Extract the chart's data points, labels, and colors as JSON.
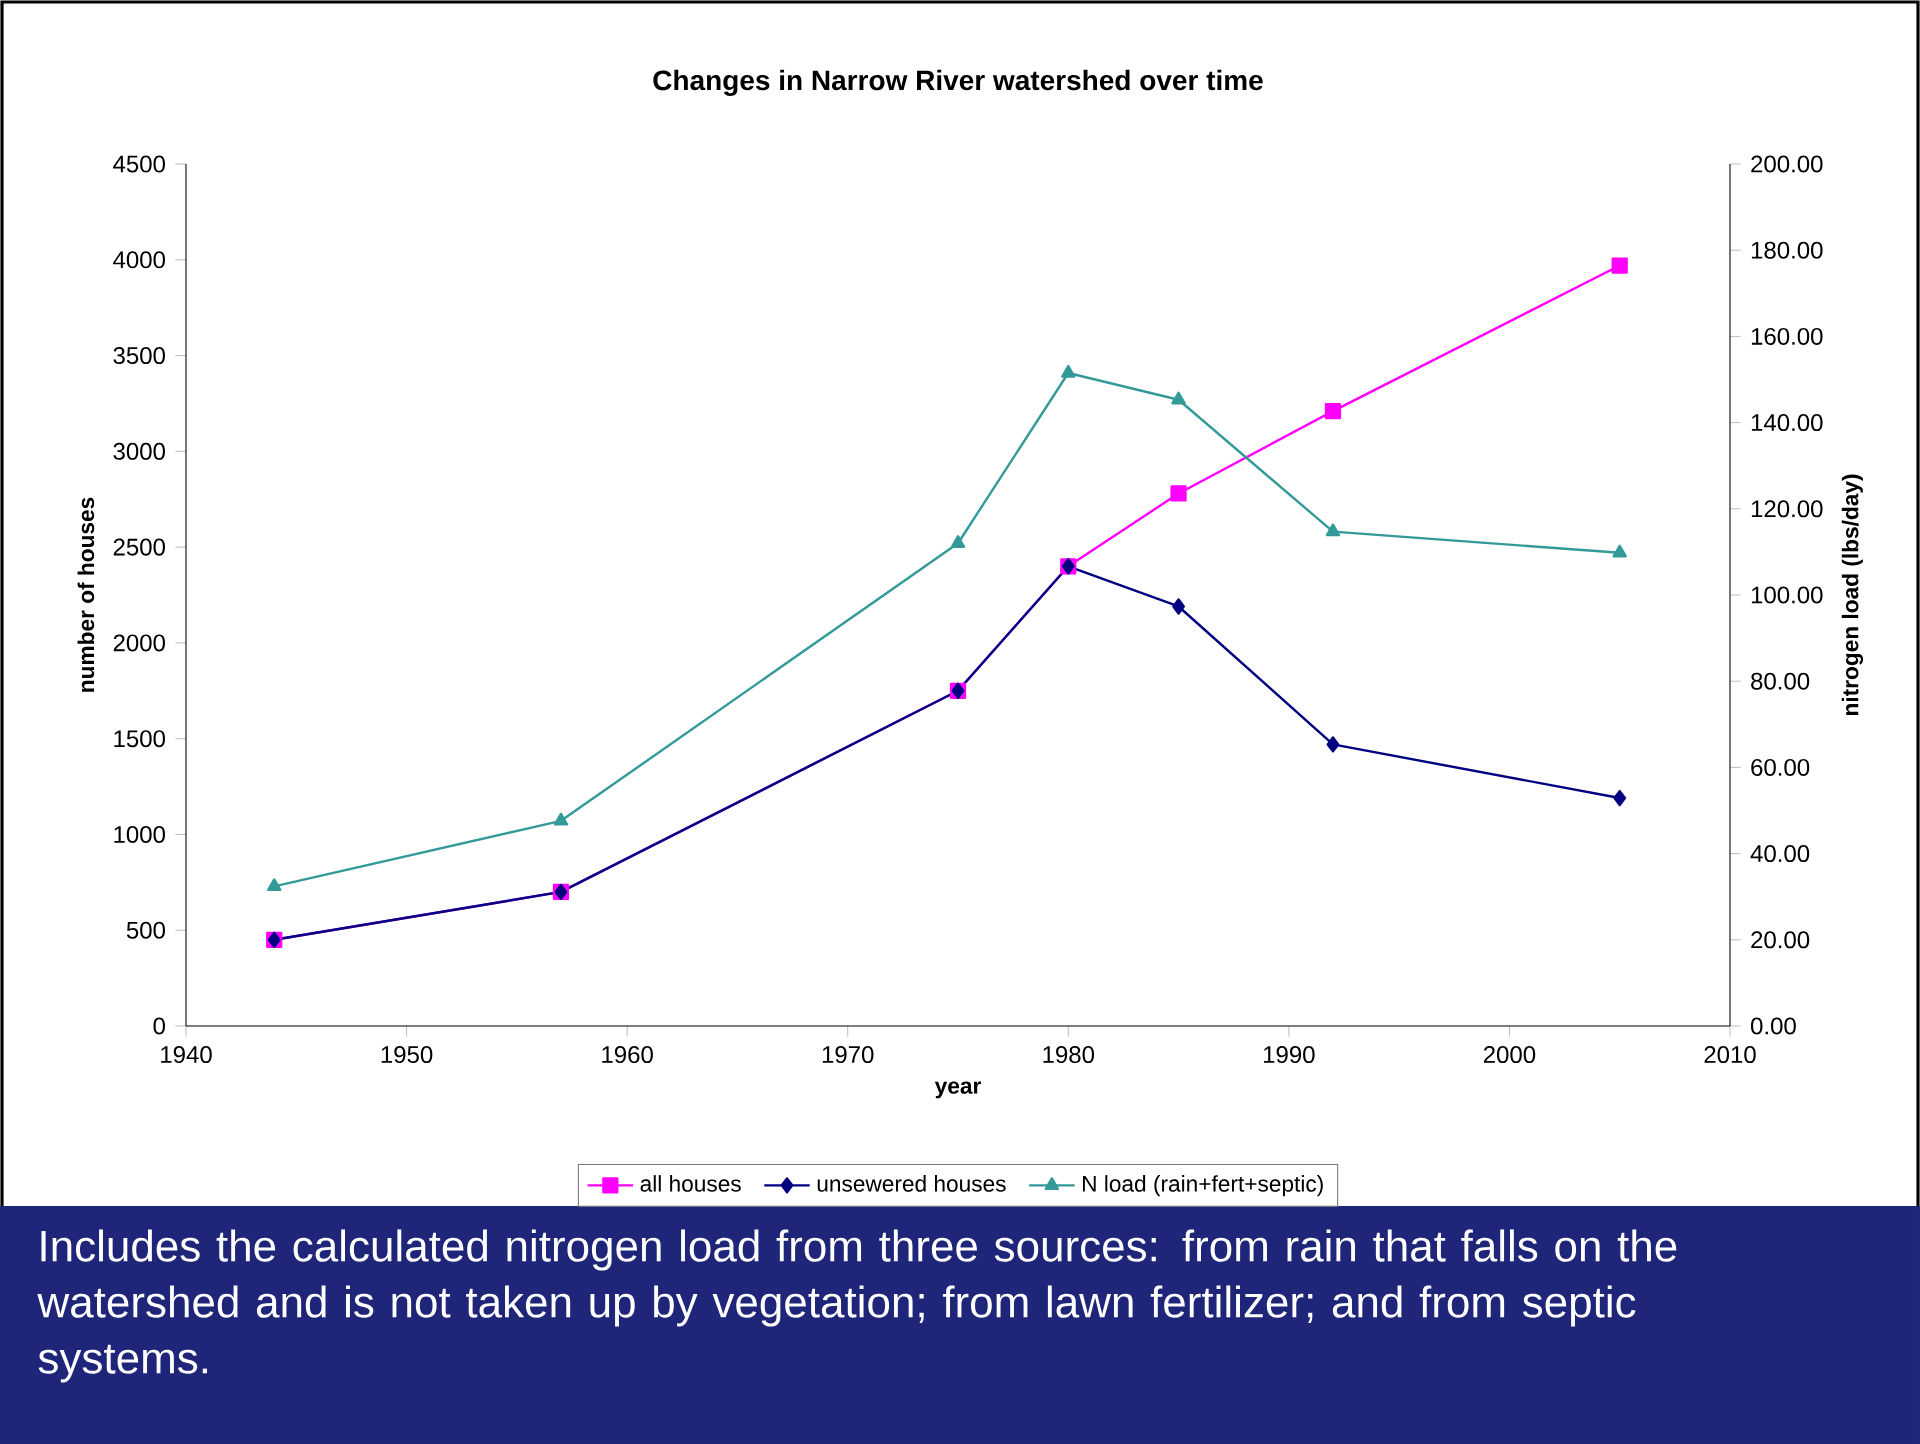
{
  "chart_data": {
    "type": "line",
    "title": "Changes in Narrow River watershed over time",
    "xlabel": "year",
    "ylabel": "number of houses",
    "y2label": "nitrogen load (lbs/day)",
    "x": [
      1944,
      1957,
      1975,
      1980,
      1985,
      1992,
      2005
    ],
    "series": [
      {
        "name": "all houses",
        "color": "#ff00ff",
        "marker": "square",
        "values": [
          450,
          700,
          1750,
          2400,
          2780,
          3210,
          3970
        ]
      },
      {
        "name": "unsewered houses",
        "color": "#000080",
        "marker": "diamond",
        "values": [
          450,
          700,
          1750,
          2400,
          2190,
          1470,
          1190
        ]
      },
      {
        "name": "N load (rain+fert+septic)",
        "color": "#339999",
        "marker": "triangle",
        "axis": "y2",
        "values": [
          32.4,
          47.6,
          112,
          151.5,
          145.3,
          114.7,
          109.8
        ]
      }
    ],
    "xlim": [
      1940,
      2010
    ],
    "xticks": [
      1940,
      1950,
      1960,
      1970,
      1980,
      1990,
      2000,
      2010
    ],
    "ylim": [
      0,
      4500
    ],
    "yticks": [
      0,
      500,
      1000,
      1500,
      2000,
      2500,
      3000,
      3500,
      4000,
      4500
    ],
    "y2lim": [
      0,
      200
    ],
    "y2ticks": [
      {
        "value": 0,
        "label": "0.00"
      },
      {
        "value": 20,
        "label": "20.00"
      },
      {
        "value": 40,
        "label": "40.00"
      },
      {
        "value": 60,
        "label": "60.00"
      },
      {
        "value": 80,
        "label": "80.00"
      },
      {
        "value": 100,
        "label": "100.00"
      },
      {
        "value": 120,
        "label": "120.00"
      },
      {
        "value": 140,
        "label": "140.00"
      },
      {
        "value": 160,
        "label": "160.00"
      },
      {
        "value": 180,
        "label": "180.00"
      },
      {
        "value": 200,
        "label": "200.00"
      }
    ],
    "grid": false,
    "legend": "bottom",
    "annotations": [
      "Includes the calculated nitrogen load from three sources: from rain that falls on the watershed and is not taken up by vegetation; from lawn fertilizer; and from septic systems."
    ]
  }
}
